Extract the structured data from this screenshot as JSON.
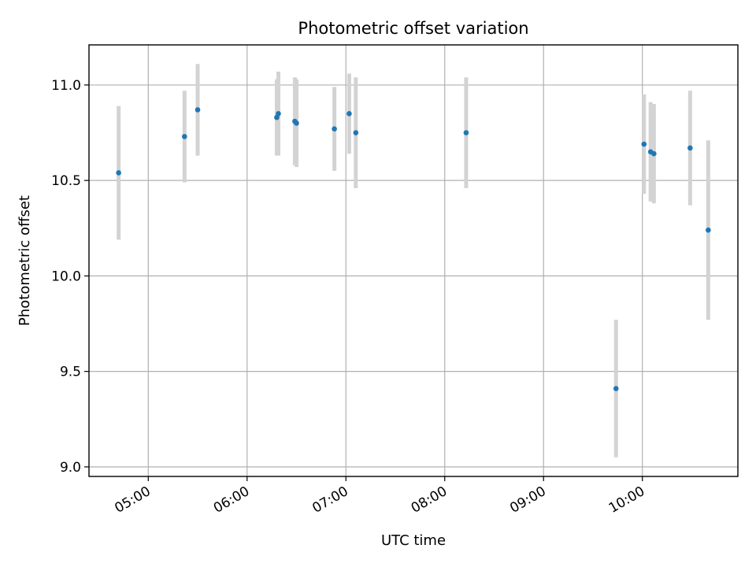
{
  "chart_data": {
    "type": "scatter",
    "title": "Photometric offset variation",
    "xlabel": "UTC time",
    "ylabel": "Photometric offset",
    "x_axis": "time",
    "xlim": [
      "04:24",
      "10:58"
    ],
    "ylim": [
      8.95,
      11.21
    ],
    "xticks": [
      "05:00",
      "06:00",
      "07:00",
      "08:00",
      "09:00",
      "10:00"
    ],
    "yticks": [
      9.0,
      9.5,
      10.0,
      10.5,
      11.0
    ],
    "ytick_labels": [
      "9.0",
      "9.5",
      "10.0",
      "10.5",
      "11.0"
    ],
    "grid": true,
    "legend": false,
    "colors": {
      "point": "#1f77b4",
      "errorbar": "#d3d3d3",
      "grid": "#b0b0b0"
    },
    "points": [
      {
        "x": "04:42",
        "y": 10.54,
        "yerr": 0.35
      },
      {
        "x": "05:22",
        "y": 10.73,
        "yerr": 0.24
      },
      {
        "x": "05:30",
        "y": 10.87,
        "yerr": 0.24
      },
      {
        "x": "06:18",
        "y": 10.83,
        "yerr": 0.2
      },
      {
        "x": "06:19",
        "y": 10.85,
        "yerr": 0.22
      },
      {
        "x": "06:29",
        "y": 10.81,
        "yerr": 0.23
      },
      {
        "x": "06:30",
        "y": 10.8,
        "yerr": 0.23
      },
      {
        "x": "06:53",
        "y": 10.77,
        "yerr": 0.22
      },
      {
        "x": "07:02",
        "y": 10.85,
        "yerr": 0.21
      },
      {
        "x": "07:06",
        "y": 10.75,
        "yerr": 0.29
      },
      {
        "x": "08:13",
        "y": 10.75,
        "yerr": 0.29
      },
      {
        "x": "09:44",
        "y": 9.41,
        "yerr": 0.36
      },
      {
        "x": "10:01",
        "y": 10.69,
        "yerr": 0.26
      },
      {
        "x": "10:05",
        "y": 10.65,
        "yerr": 0.26
      },
      {
        "x": "10:07",
        "y": 10.64,
        "yerr": 0.26
      },
      {
        "x": "10:29",
        "y": 10.67,
        "yerr": 0.3
      },
      {
        "x": "10:40",
        "y": 10.24,
        "yerr": 0.47
      }
    ]
  }
}
